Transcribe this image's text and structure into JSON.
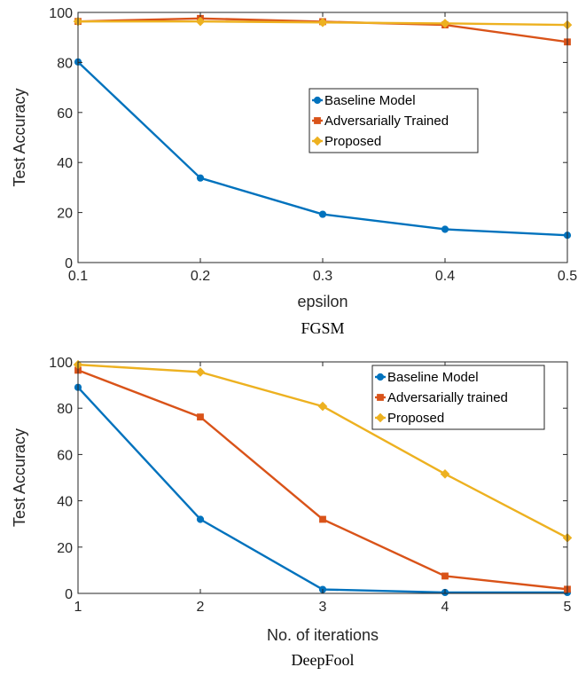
{
  "colors": {
    "blue": "#0072BD",
    "orange": "#D95319",
    "yellow": "#EDB120",
    "axis": "#262626"
  },
  "chart_data": [
    {
      "type": "line",
      "caption": "FGSM",
      "xlabel": "epsilon",
      "ylabel": "Test Accuracy",
      "x": [
        0.1,
        0.2,
        0.3,
        0.4,
        0.5
      ],
      "xticks": [
        "0.1",
        "0.2",
        "0.3",
        "0.4",
        "0.5"
      ],
      "yticks": [
        "0",
        "20",
        "40",
        "60",
        "80",
        "100"
      ],
      "xlim": [
        0.1,
        0.5
      ],
      "ylim": [
        0,
        100
      ],
      "grid": false,
      "legend_position": "middle-right",
      "series": [
        {
          "name": "Baseline Model",
          "color": "#0072BD",
          "marker": "circle",
          "values": [
            80.2,
            33.8,
            19.3,
            13.3,
            10.9
          ]
        },
        {
          "name": "Adversarially Trained",
          "color": "#D95319",
          "marker": "square",
          "values": [
            96.4,
            97.6,
            96.3,
            95.0,
            88.2
          ]
        },
        {
          "name": "Proposed",
          "color": "#EDB120",
          "marker": "diamond",
          "values": [
            96.4,
            96.4,
            96.0,
            95.6,
            95.0
          ]
        }
      ]
    },
    {
      "type": "line",
      "caption": "DeepFool",
      "xlabel": "No. of iterations",
      "ylabel": "Test Accuracy",
      "x": [
        1,
        2,
        3,
        4,
        5
      ],
      "xticks": [
        "1",
        "2",
        "3",
        "4",
        "5"
      ],
      "yticks": [
        "0",
        "20",
        "40",
        "60",
        "80",
        "100"
      ],
      "xlim": [
        1,
        5
      ],
      "ylim": [
        0,
        100
      ],
      "grid": false,
      "legend_position": "top-right",
      "series": [
        {
          "name": "Baseline Model",
          "color": "#0072BD",
          "marker": "circle",
          "values": [
            89.0,
            32.0,
            1.7,
            0.4,
            0.4
          ]
        },
        {
          "name": "Adversarially trained",
          "color": "#D95319",
          "marker": "square",
          "values": [
            96.4,
            76.2,
            32.0,
            7.5,
            1.8
          ]
        },
        {
          "name": "Proposed",
          "color": "#EDB120",
          "marker": "diamond",
          "values": [
            98.8,
            95.6,
            80.8,
            51.6,
            24.0
          ]
        }
      ]
    }
  ]
}
